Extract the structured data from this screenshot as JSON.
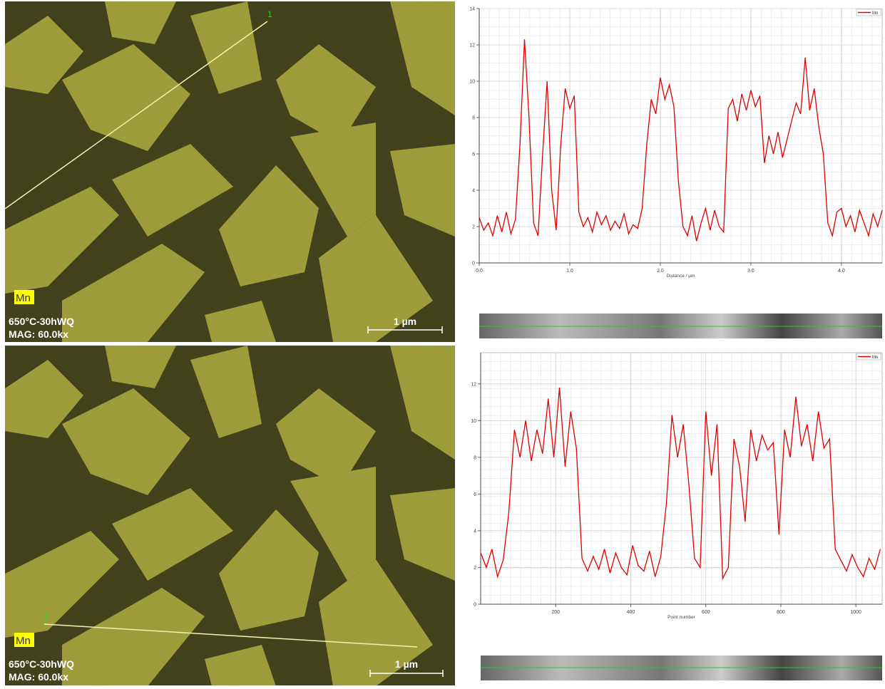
{
  "images": [
    {
      "element": "Mn",
      "sample": "650°C-30hWQ",
      "magnification": "MAG: 60.0kx",
      "scale_bar": "1 µm",
      "line_label": "1"
    },
    {
      "element": "Mn",
      "sample": "650°C-30hWQ",
      "magnification": "MAG: 60.0kx",
      "scale_bar": "1 µm",
      "line_label": "1"
    }
  ],
  "chart_data": [
    {
      "type": "line",
      "xlabel": "Distance / µm",
      "grid": true,
      "legend": "upper right",
      "xlim": [
        0,
        4.45
      ],
      "ylim": [
        0,
        14
      ],
      "xticks": [
        {
          "value": 0,
          "label": "0.0"
        },
        {
          "value": 1,
          "label": "1.0"
        },
        {
          "value": 2,
          "label": "2.0"
        },
        {
          "value": 3,
          "label": "3.0"
        },
        {
          "value": 4,
          "label": "4.0"
        }
      ],
      "yticks": [
        0,
        2,
        4,
        6,
        8,
        10,
        12,
        14
      ],
      "x": [
        0,
        0.05,
        0.1,
        0.15,
        0.2,
        0.25,
        0.3,
        0.35,
        0.4,
        0.45,
        0.5,
        0.55,
        0.6,
        0.65,
        0.7,
        0.75,
        0.8,
        0.85,
        0.9,
        0.95,
        1,
        1.05,
        1.1,
        1.15,
        1.2,
        1.25,
        1.3,
        1.35,
        1.4,
        1.45,
        1.5,
        1.55,
        1.6,
        1.65,
        1.7,
        1.75,
        1.8,
        1.85,
        1.9,
        1.95,
        2,
        2.05,
        2.1,
        2.15,
        2.2,
        2.25,
        2.3,
        2.35,
        2.4,
        2.45,
        2.5,
        2.55,
        2.6,
        2.65,
        2.7,
        2.75,
        2.8,
        2.85,
        2.9,
        2.95,
        3,
        3.05,
        3.1,
        3.15,
        3.2,
        3.25,
        3.3,
        3.35,
        3.4,
        3.45,
        3.5,
        3.55,
        3.6,
        3.65,
        3.7,
        3.75,
        3.8,
        3.85,
        3.9,
        3.95,
        4,
        4.05,
        4.1,
        4.15,
        4.2,
        4.25,
        4.3,
        4.35,
        4.4,
        4.45
      ],
      "series": [
        {
          "name": "Mn",
          "color": "#e00000",
          "values": [
            2.5,
            1.8,
            2.2,
            1.5,
            2.6,
            1.7,
            2.8,
            1.6,
            2.4,
            6.5,
            12.3,
            8.0,
            2.2,
            1.5,
            6.0,
            10.0,
            4.0,
            1.8,
            6.5,
            9.6,
            8.5,
            9.2,
            2.8,
            2.0,
            2.5,
            1.7,
            2.8,
            2.1,
            2.6,
            1.8,
            2.3,
            1.9,
            2.7,
            1.6,
            2.1,
            1.9,
            3.0,
            6.5,
            9.0,
            8.2,
            10.2,
            9.0,
            9.8,
            8.6,
            4.5,
            2.0,
            1.5,
            2.6,
            1.2,
            2.2,
            3.0,
            1.8,
            2.9,
            2.0,
            1.7,
            8.5,
            9.0,
            7.8,
            9.3,
            8.4,
            9.5,
            8.6,
            9.2,
            5.5,
            7.0,
            6.0,
            7.2,
            5.8,
            6.8,
            7.8,
            8.8,
            8.2,
            11.3,
            8.4,
            9.6,
            7.5,
            6.0,
            2.2,
            1.5,
            2.8,
            3.0,
            2.0,
            2.6,
            1.7,
            2.9,
            2.2,
            1.5,
            2.7,
            2.0,
            2.9
          ]
        }
      ]
    },
    {
      "type": "line",
      "xlabel": "Point number",
      "grid": true,
      "legend": "upper right",
      "xlim": [
        0,
        1070
      ],
      "ylim": [
        0,
        13.7
      ],
      "xticks": [
        200,
        400,
        600,
        800,
        1000
      ],
      "yticks": [
        0,
        2,
        4,
        6,
        8,
        10,
        12
      ],
      "x": [
        0,
        15,
        30,
        45,
        60,
        75,
        90,
        105,
        120,
        135,
        150,
        165,
        180,
        195,
        210,
        225,
        240,
        255,
        270,
        285,
        300,
        315,
        330,
        345,
        360,
        375,
        390,
        405,
        420,
        435,
        450,
        465,
        480,
        495,
        510,
        525,
        540,
        555,
        570,
        585,
        600,
        615,
        630,
        645,
        660,
        675,
        690,
        705,
        720,
        735,
        750,
        765,
        780,
        795,
        810,
        825,
        840,
        855,
        870,
        885,
        900,
        915,
        930,
        945,
        960,
        975,
        990,
        1005,
        1020,
        1035,
        1050,
        1065
      ],
      "series": [
        {
          "name": "Mn",
          "color": "#e00000",
          "values": [
            2.8,
            2.0,
            3.0,
            1.5,
            2.4,
            5.0,
            9.5,
            8.0,
            10.0,
            7.8,
            9.5,
            8.2,
            11.2,
            8.0,
            11.8,
            7.5,
            10.5,
            8.5,
            2.5,
            1.8,
            2.6,
            1.9,
            3.0,
            1.7,
            2.8,
            2.0,
            1.6,
            3.2,
            2.1,
            1.8,
            2.9,
            1.5,
            2.6,
            5.5,
            10.3,
            8.0,
            9.8,
            6.5,
            2.5,
            2.0,
            10.5,
            7.0,
            9.8,
            1.4,
            2.0,
            9.0,
            7.5,
            4.5,
            9.5,
            7.8,
            9.2,
            8.4,
            8.8,
            3.8,
            9.5,
            8.0,
            11.3,
            8.6,
            9.8,
            7.8,
            10.5,
            8.5,
            9.0,
            3.0,
            2.4,
            1.8,
            2.7,
            2.0,
            1.5,
            2.5,
            1.9,
            3.0
          ]
        }
      ]
    }
  ]
}
